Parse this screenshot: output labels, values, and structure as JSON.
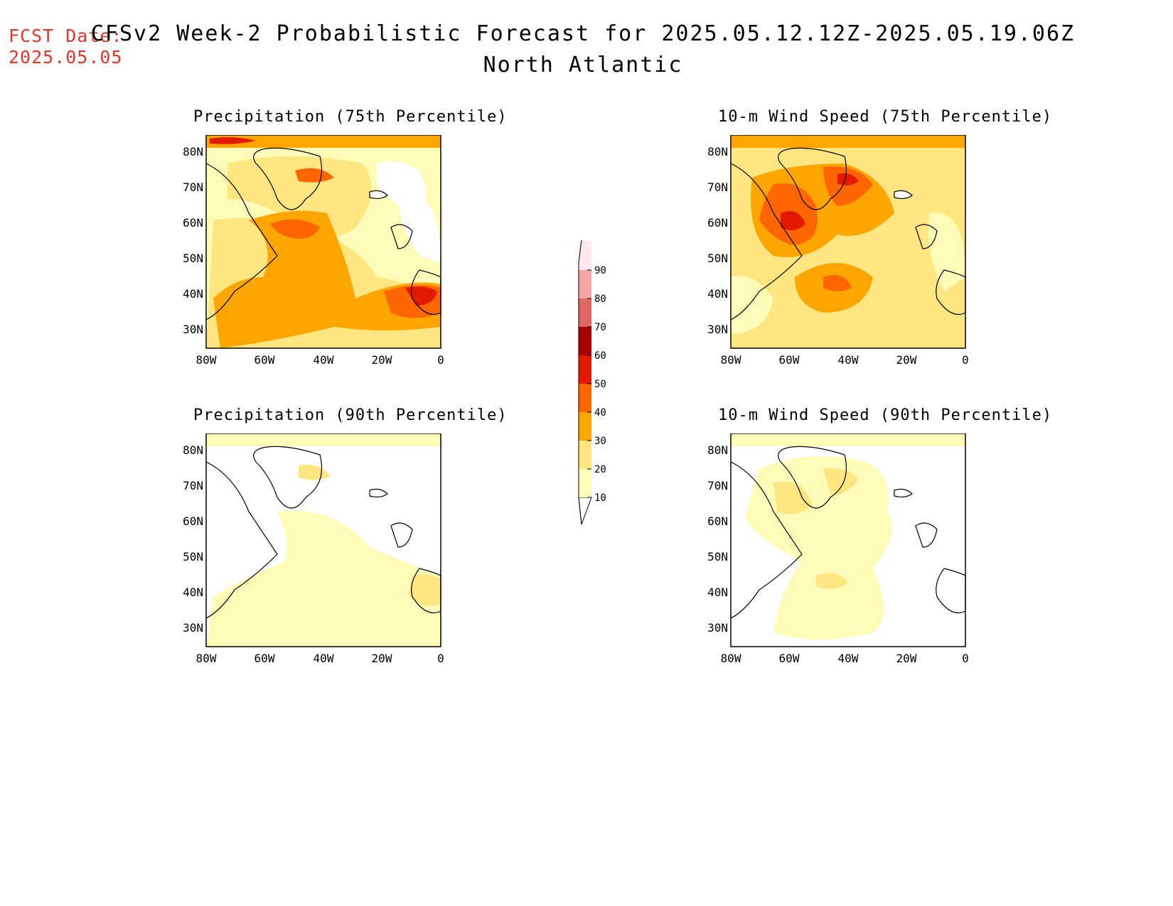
{
  "header": {
    "fcst_label": "FCST Date:",
    "fcst_date": "2025.05.05",
    "title": "CFSv2 Week-2 Probabilistic Forecast for 2025.05.12.12Z-2025.05.19.06Z",
    "region": "North Atlantic"
  },
  "axes": {
    "lat_ticks": [
      "80N",
      "70N",
      "60N",
      "50N",
      "40N",
      "30N"
    ],
    "lon_ticks": [
      "80W",
      "60W",
      "40W",
      "20W",
      "0"
    ]
  },
  "panels": [
    {
      "id": "precip-75",
      "title": "Precipitation (75th Percentile)"
    },
    {
      "id": "precip-90",
      "title": "Precipitation (90th Percentile)"
    },
    {
      "id": "wind-75",
      "title": "10-m Wind Speed (75th Percentile)"
    },
    {
      "id": "wind-90",
      "title": "10-m Wind Speed (90th Percentile)"
    }
  ],
  "colorbar": {
    "levels": [
      "10",
      "20",
      "30",
      "40",
      "50",
      "60",
      "70",
      "80",
      "90"
    ],
    "colors": [
      "#fffcb8",
      "#ffe680",
      "#ffa500",
      "#ff6600",
      "#e31a00",
      "#a80000",
      "#e06666",
      "#f4a6a6",
      "#ffe8ec"
    ]
  },
  "chart_data": {
    "type": "heatmap",
    "xlim": [
      -80,
      0
    ],
    "ylim": [
      25,
      85
    ],
    "levels": [
      10,
      20,
      30,
      40,
      50,
      60,
      70,
      80,
      90
    ]
  }
}
